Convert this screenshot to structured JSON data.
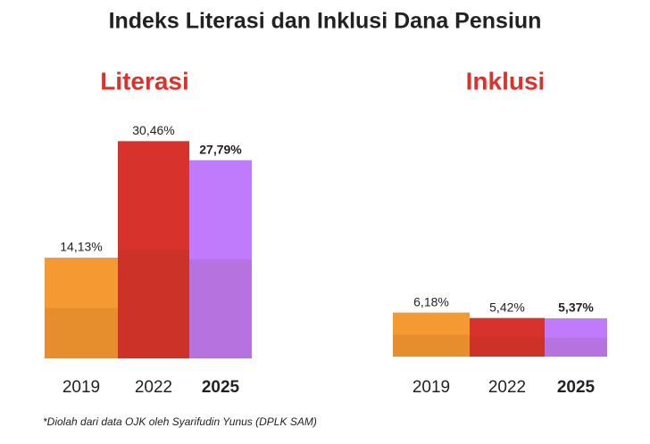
{
  "title": "Indeks Literasi dan Inklusi Dana Pensiun",
  "note": "*Diolah dari data OJK oleh Syarifudin Yunus (DPLK SAM)",
  "chart_data": [
    {
      "type": "bar",
      "title": "Literasi",
      "title_color": "#d9342b",
      "categories": [
        "2019",
        "2022",
        "2025"
      ],
      "values": [
        14.13,
        30.46,
        27.79
      ],
      "value_labels": [
        "14,13%",
        "30,46%",
        "27,79%"
      ],
      "colors": [
        "#f59a32",
        "#d8322c",
        "#bf7bfc"
      ]
    },
    {
      "type": "bar",
      "title": "Inklusi",
      "title_color": "#d9342b",
      "categories": [
        "2019",
        "2022",
        "2025"
      ],
      "values": [
        6.18,
        5.42,
        5.37
      ],
      "value_labels": [
        "6,18%",
        "5,42%",
        "5,37%"
      ],
      "colors": [
        "#f59a32",
        "#d8322c",
        "#bf7bfc"
      ]
    }
  ]
}
